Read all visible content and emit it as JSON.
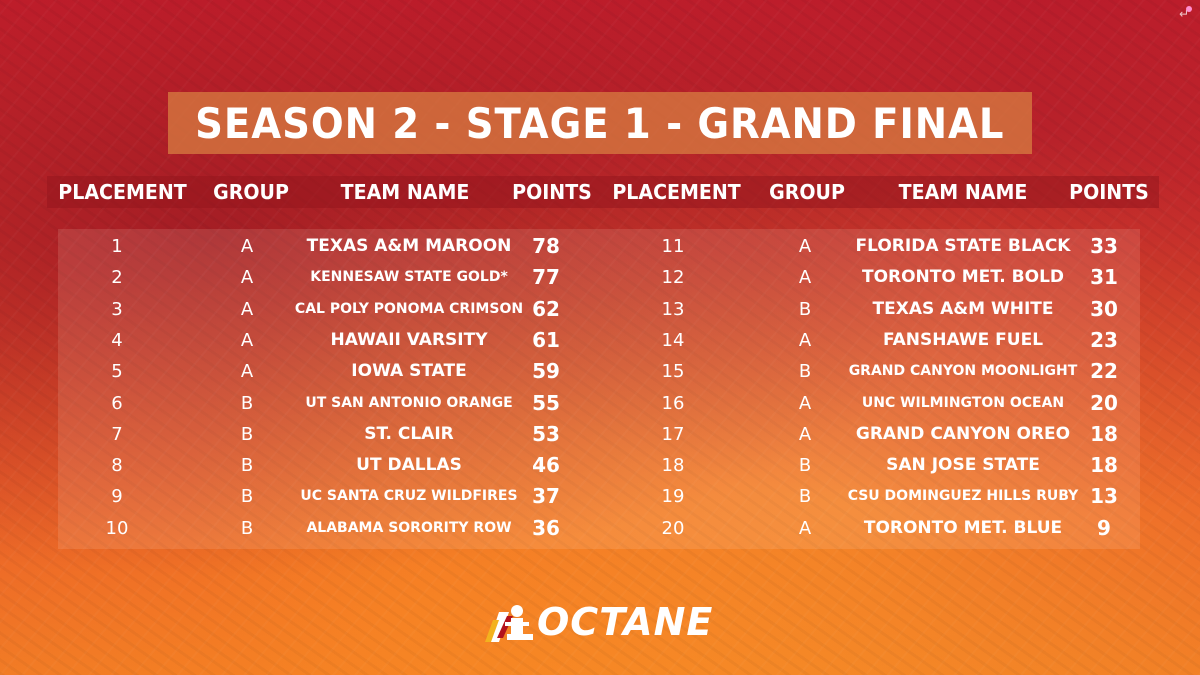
{
  "title": "SEASON 2 - STAGE 1 - GRAND FINAL",
  "headers": {
    "left": [
      "PLACEMENT",
      "GROUP",
      "TEAM NAME",
      "POINTS"
    ],
    "right": [
      "PLACEMENT",
      "GROUP",
      "TEAM NAME",
      "POINTS"
    ]
  },
  "standings_left": [
    {
      "placement": "1",
      "group": "A",
      "team": "TEXAS A&M MAROON",
      "points": "78"
    },
    {
      "placement": "2",
      "group": "A",
      "team": "KENNESAW STATE GOLD*",
      "points": "77"
    },
    {
      "placement": "3",
      "group": "A",
      "team": "CAL POLY PONOMA CRIMSON",
      "points": "62"
    },
    {
      "placement": "4",
      "group": "A",
      "team": "HAWAII VARSITY",
      "points": "61"
    },
    {
      "placement": "5",
      "group": "A",
      "team": "IOWA STATE",
      "points": "59"
    },
    {
      "placement": "6",
      "group": "B",
      "team": "UT SAN ANTONIO ORANGE",
      "points": "55"
    },
    {
      "placement": "7",
      "group": "B",
      "team": "ST. CLAIR",
      "points": "53"
    },
    {
      "placement": "8",
      "group": "B",
      "team": "UT DALLAS",
      "points": "46"
    },
    {
      "placement": "9",
      "group": "B",
      "team": "UC SANTA CRUZ WILDFIRES",
      "points": "37"
    },
    {
      "placement": "10",
      "group": "B",
      "team": "ALABAMA SORORITY ROW",
      "points": "36"
    }
  ],
  "standings_right": [
    {
      "placement": "11",
      "group": "A",
      "team": "FLORIDA STATE BLACK",
      "points": "33"
    },
    {
      "placement": "12",
      "group": "A",
      "team": "TORONTO MET. BOLD",
      "points": "31"
    },
    {
      "placement": "13",
      "group": "B",
      "team": "TEXAS A&M WHITE",
      "points": "30"
    },
    {
      "placement": "14",
      "group": "A",
      "team": "FANSHAWE FUEL",
      "points": "23"
    },
    {
      "placement": "15",
      "group": "B",
      "team": "GRAND CANYON MOONLIGHT",
      "points": "22"
    },
    {
      "placement": "16",
      "group": "A",
      "team": "UNC WILMINGTON OCEAN",
      "points": "20"
    },
    {
      "placement": "17",
      "group": "A",
      "team": "GRAND CANYON OREO",
      "points": "18"
    },
    {
      "placement": "18",
      "group": "B",
      "team": "SAN JOSE STATE",
      "points": "18"
    },
    {
      "placement": "19",
      "group": "B",
      "team": "CSU DOMINGUEZ HILLS RUBY",
      "points": "13"
    },
    {
      "placement": "20",
      "group": "A",
      "team": "TORONTO MET. BLUE",
      "points": "9"
    }
  ],
  "logo": {
    "text": "OCTANE",
    "icon": "octane-logo-icon"
  },
  "corner_icon": "exit-arrow-icon",
  "colors": {
    "title_bg": "#d67a40",
    "header_bg": "#96161e",
    "text": "#ffffff"
  }
}
